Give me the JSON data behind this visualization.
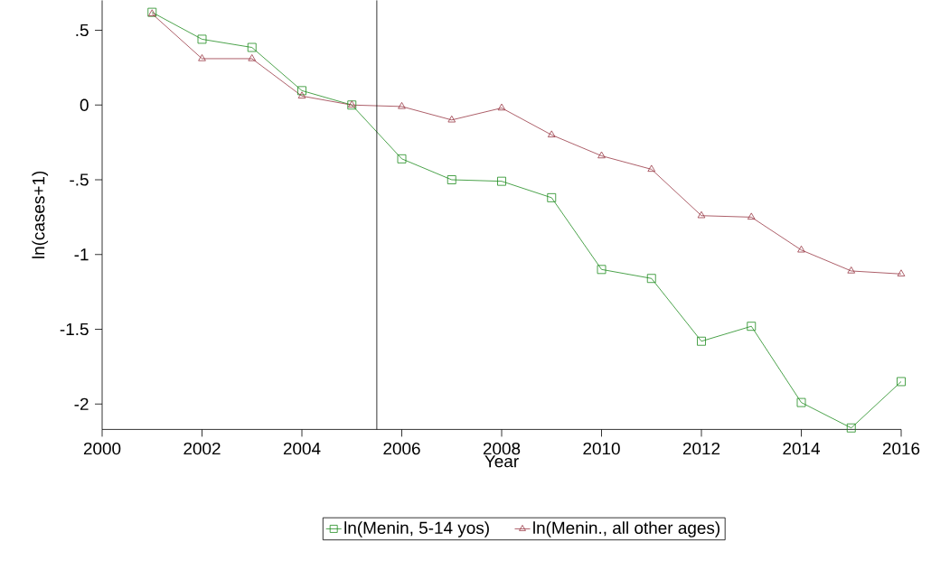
{
  "chart_data": {
    "type": "line",
    "xlabel": "Year",
    "ylabel": "ln(cases+1)",
    "x": [
      2001,
      2002,
      2003,
      2004,
      2005,
      2006,
      2007,
      2008,
      2009,
      2010,
      2011,
      2012,
      2013,
      2014,
      2015,
      2016
    ],
    "series": [
      {
        "name": "ln(Menin, 5-14 yos)",
        "color": "#1e8c1e",
        "marker": "square",
        "values": [
          0.62,
          0.44,
          0.385,
          0.096,
          0,
          -0.36,
          -0.5,
          -0.51,
          -0.62,
          -1.1,
          -1.16,
          -1.58,
          -1.48,
          -1.99,
          -2.16,
          -1.85
        ]
      },
      {
        "name": "ln(Menin., all other ages)",
        "color": "#983744",
        "marker": "triangle",
        "values": [
          0.61,
          0.31,
          0.31,
          0.06,
          0,
          -0.01,
          -0.1,
          -0.02,
          -0.2,
          -0.34,
          -0.43,
          -0.74,
          -0.75,
          -0.97,
          -1.11,
          -1.13
        ]
      }
    ],
    "xlim": [
      2000,
      2016
    ],
    "ylim": [
      -2.17,
      0.7
    ],
    "xticks": [
      2000,
      2002,
      2004,
      2006,
      2008,
      2010,
      2012,
      2014,
      2016
    ],
    "yticks": [
      {
        "value": 0.5,
        "label": ".5"
      },
      0,
      {
        "value": -0.5,
        "label": "-.5"
      },
      -1,
      {
        "value": -1.5,
        "label": "-1.5"
      },
      -2
    ],
    "ref_lines": [
      {
        "axis": "x",
        "value": 2005.5,
        "color": "#000000"
      }
    ],
    "grid": false,
    "legend": "bottom",
    "line_style": "solid"
  }
}
